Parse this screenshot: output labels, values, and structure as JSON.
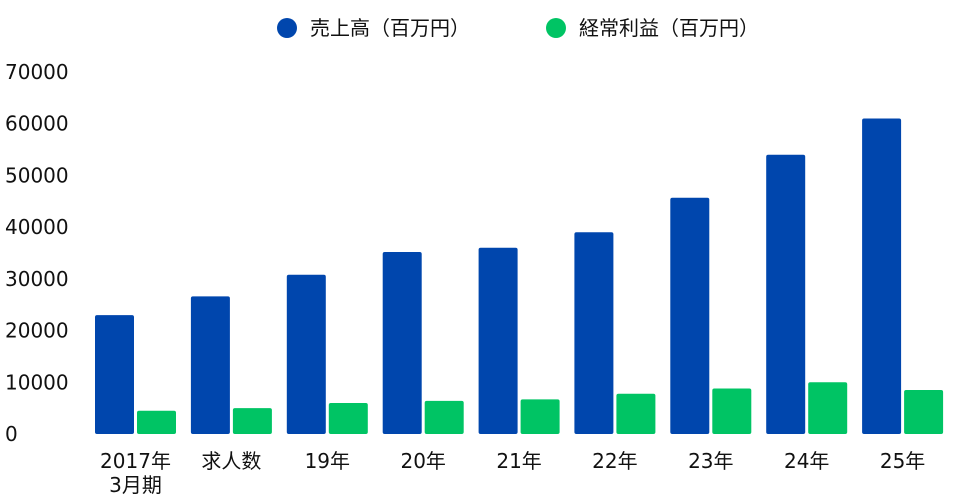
{
  "chart_data": {
    "type": "bar",
    "title": "",
    "xlabel": "",
    "ylabel": "",
    "ylim": [
      0,
      70000
    ],
    "yticks": [
      0,
      10000,
      20000,
      30000,
      40000,
      50000,
      60000,
      70000
    ],
    "grid": false,
    "legend_position": "top-center",
    "categories": [
      "2017年\n3月期",
      "求人数",
      "19年",
      "20年",
      "21年",
      "22年",
      "23年",
      "24年",
      "25年"
    ],
    "series": [
      {
        "name": "売上高（百万円）",
        "color": "#0046ad",
        "values": [
          23000,
          26600,
          30800,
          35200,
          36000,
          39000,
          45700,
          54000,
          61000
        ]
      },
      {
        "name": "経常利益（百万円）",
        "color": "#00c464",
        "values": [
          4500,
          5000,
          6000,
          6400,
          6700,
          7800,
          8800,
          10000,
          8500
        ]
      }
    ]
  }
}
